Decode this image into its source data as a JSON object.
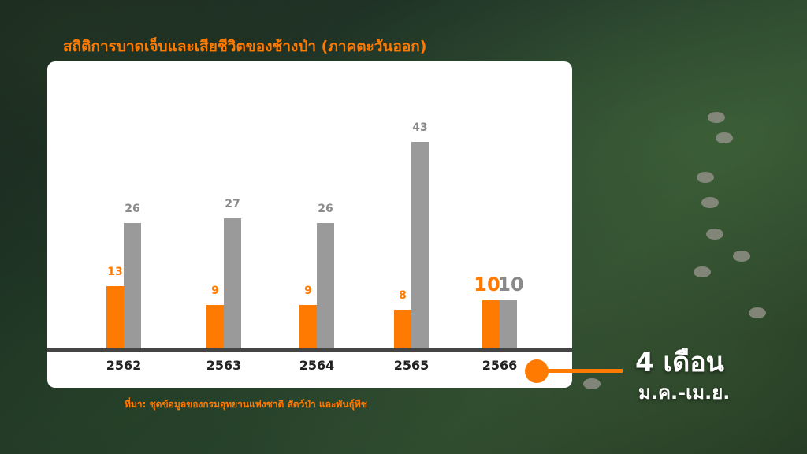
{
  "title": "สถิติการบาดเจ็บและเสียชีวิตของช้างป่า (ภาคตะวันออก)",
  "source": "ที่มา: ชุดข้อมูลของกรมอุทยานแห่งชาติ สัตว์ป่า และพันธุ์พืช",
  "period": {
    "main": "4 เดือน",
    "sub": "ม.ค.-เม.ย."
  },
  "colors": {
    "injured": "#ff7a00",
    "dead": "#9a9a9a"
  },
  "chart_data": {
    "type": "bar",
    "categories": [
      "2562",
      "2563",
      "2564",
      "2565",
      "2566"
    ],
    "series": [
      {
        "values": [
          13,
          9,
          9,
          8,
          10
        ]
      },
      {
        "values": [
          26,
          27,
          26,
          43,
          10
        ]
      }
    ],
    "ylim": [
      0,
      50
    ],
    "grid": false,
    "xlabel": "",
    "ylabel": ""
  }
}
